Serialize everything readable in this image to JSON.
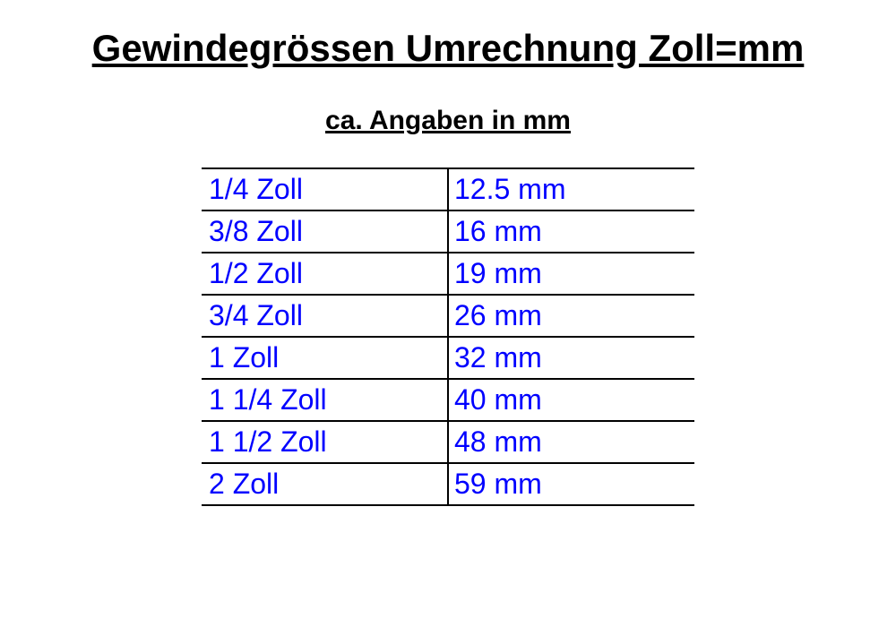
{
  "title": "Gewindegrössen Umrechnung Zoll=mm",
  "subtitle": "ca. Angaben in mm",
  "table": {
    "text_color": "#0000ff",
    "border_color": "#000000",
    "background_color": "#ffffff",
    "font_size": 32,
    "rows": [
      {
        "zoll": "1/4 Zoll",
        "mm": "12.5 mm"
      },
      {
        "zoll": "3/8 Zoll",
        "mm": "16 mm"
      },
      {
        "zoll": "1/2 Zoll",
        "mm": "19 mm"
      },
      {
        "zoll": "3/4 Zoll",
        "mm": "26 mm"
      },
      {
        "zoll": "1 Zoll",
        "mm": "32 mm"
      },
      {
        "zoll": "1 1/4 Zoll",
        "mm": "40 mm"
      },
      {
        "zoll": "1 1/2 Zoll",
        "mm": "48 mm"
      },
      {
        "zoll": "2 Zoll",
        "mm": "59 mm"
      }
    ]
  }
}
